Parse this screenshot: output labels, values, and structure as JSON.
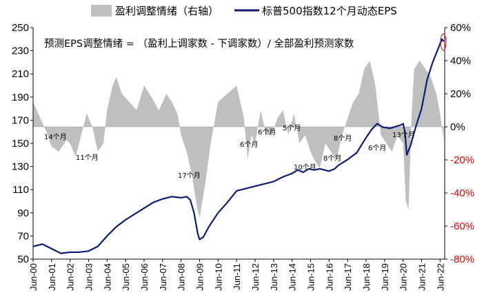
{
  "chart_data": {
    "type": "line+area",
    "legend": [
      {
        "name": "盈利调整情绪（右轴）",
        "type": "area",
        "color": "#bfbfbf"
      },
      {
        "name": "标普500指数12个月动态EPS",
        "type": "line",
        "color": "#0d1a73"
      }
    ],
    "annotation": "预测EPS调整情绪 = （盈利上调家数 - 下调家数）/ 全部盈利预测家数",
    "left_axis": {
      "min": 50,
      "max": 250,
      "ticks": [
        50,
        70,
        90,
        110,
        130,
        150,
        170,
        190,
        210,
        230,
        250
      ]
    },
    "right_axis": {
      "min": -80,
      "max": 60,
      "ticks": [
        "-80%",
        "-60%",
        "-40%",
        "-20%",
        "0%",
        "20%",
        "40%",
        "60%"
      ],
      "negative_color": "#e00000"
    },
    "x_ticks": [
      "Jun-00",
      "Jun-01",
      "Jun-02",
      "Jun-03",
      "Jun-04",
      "Jun-05",
      "Jun-06",
      "Jun-07",
      "Jun-08",
      "Jun-09",
      "Jun-10",
      "Jun-11",
      "Jun-12",
      "Jun-13",
      "Jun-14",
      "Jun-15",
      "Jun-16",
      "Jun-17",
      "Jun-18",
      "Jun-19",
      "Jun-20",
      "Jun-21",
      "Jun-22"
    ],
    "eps_series": {
      "name": "标普500指数12个月动态EPS",
      "x": [
        2000.0,
        2000.5,
        2001.0,
        2001.5,
        2002.0,
        2002.5,
        2003.0,
        2003.5,
        2004.0,
        2004.5,
        2005.0,
        2005.5,
        2006.0,
        2006.5,
        2007.0,
        2007.5,
        2008.0,
        2008.3,
        2008.5,
        2008.7,
        2008.9,
        2009.0,
        2009.2,
        2009.5,
        2010.0,
        2010.5,
        2011.0,
        2011.5,
        2012.0,
        2012.5,
        2013.0,
        2013.5,
        2014.0,
        2014.3,
        2014.6,
        2014.9,
        2015.2,
        2015.5,
        2016.0,
        2016.3,
        2016.5,
        2017.0,
        2017.5,
        2018.0,
        2018.3,
        2018.6,
        2018.9,
        2019.3,
        2019.7,
        2019.9,
        2020.0,
        2020.1,
        2020.2,
        2020.4,
        2020.7,
        2021.0,
        2021.3,
        2021.6,
        2021.9,
        2022.1,
        2022.2
      ],
      "y": [
        61,
        63,
        59,
        55,
        56,
        56,
        57,
        61,
        70,
        78,
        84,
        89,
        94,
        99,
        102,
        104,
        103,
        104,
        101,
        90,
        72,
        67,
        69,
        78,
        90,
        99,
        109,
        111,
        113,
        115,
        117,
        121,
        124,
        127,
        125,
        128,
        127,
        128,
        126,
        128,
        131,
        136,
        142,
        155,
        162,
        167,
        164,
        163,
        165,
        166,
        167,
        160,
        140,
        148,
        165,
        180,
        205,
        220,
        232,
        240,
        238
      ]
    },
    "revision_series": {
      "name": "盈利调整情绪（右轴）",
      "x": [
        2000.0,
        2000.4,
        2000.8,
        2001.0,
        2001.4,
        2001.8,
        2002.0,
        2002.3,
        2002.6,
        2002.9,
        2003.2,
        2003.5,
        2003.8,
        2004.0,
        2004.3,
        2004.5,
        2004.8,
        2005.2,
        2005.6,
        2006.0,
        2006.4,
        2006.8,
        2007.2,
        2007.5,
        2007.8,
        2008.0,
        2008.3,
        2008.6,
        2008.8,
        2009.0,
        2009.3,
        2009.6,
        2010.0,
        2010.5,
        2011.0,
        2011.4,
        2011.6,
        2011.8,
        2012.0,
        2012.3,
        2012.6,
        2012.9,
        2013.2,
        2013.5,
        2013.8,
        2014.1,
        2014.4,
        2014.7,
        2015.0,
        2015.2,
        2015.5,
        2015.8,
        2016.1,
        2016.4,
        2016.7,
        2017.0,
        2017.3,
        2017.6,
        2017.9,
        2018.2,
        2018.5,
        2018.8,
        2019.1,
        2019.4,
        2019.7,
        2020.0,
        2020.15,
        2020.3,
        2020.45,
        2020.6,
        2020.9,
        2021.2,
        2021.5,
        2021.8,
        2022.0,
        2022.2
      ],
      "y": [
        15,
        5,
        -5,
        -12,
        -15,
        -8,
        -10,
        -18,
        -5,
        8,
        0,
        -15,
        -10,
        10,
        25,
        30,
        20,
        15,
        10,
        25,
        18,
        10,
        20,
        15,
        8,
        -5,
        -15,
        -30,
        -45,
        -55,
        -35,
        -10,
        15,
        20,
        25,
        5,
        -20,
        -5,
        -10,
        10,
        -5,
        -5,
        5,
        10,
        -5,
        8,
        -10,
        -5,
        -15,
        -20,
        -25,
        -10,
        -15,
        -20,
        -5,
        5,
        15,
        20,
        35,
        40,
        25,
        -5,
        -10,
        -15,
        -5,
        -10,
        -45,
        -50,
        5,
        35,
        40,
        35,
        30,
        20,
        8,
        -8
      ]
    },
    "labels": [
      "14个月",
      "11个月",
      "17个月",
      "6个月",
      "6个月",
      "5个月",
      "10个月",
      "8个月",
      "8个月",
      "6个月",
      "13个月"
    ]
  }
}
